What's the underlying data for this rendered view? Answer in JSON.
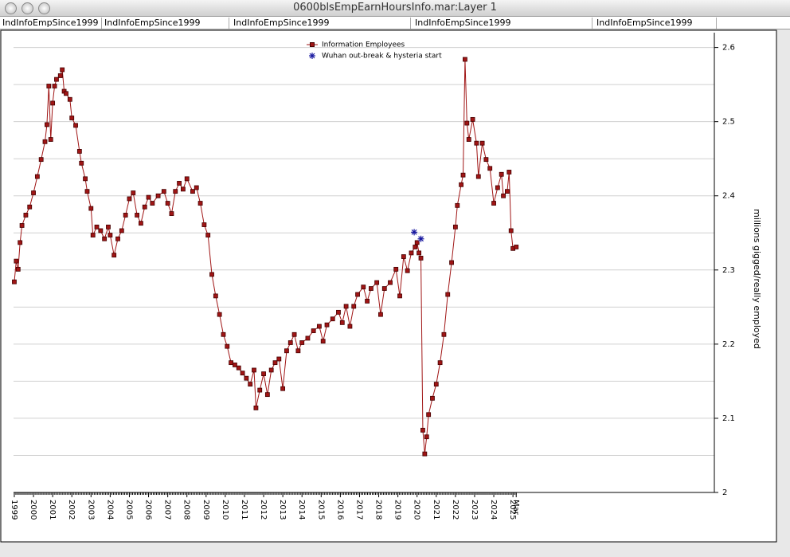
{
  "window_title": "0600blsEmpEarnHoursInfo.mar:Layer 1",
  "tabs": [
    "IndInfoEmpSince1999",
    "IndInfoEmpSince1999",
    "IndInfoEmpSince1999",
    "IndInfoEmpSince1999",
    "IndInfoEmpSince1999"
  ],
  "chart_data": {
    "type": "line",
    "y_label": "millions gigged/really employed",
    "legend": "top-center",
    "xlim": [
      1998.96,
      2035.5
    ],
    "ylim": [
      2,
      2.62
    ],
    "yticks": [
      2,
      2.1,
      2.2,
      2.3,
      2.4,
      2.5,
      2.6
    ],
    "y_gridlines": [
      2.05,
      2.1,
      2.15,
      2.2,
      2.25,
      2.3,
      2.35,
      2.4,
      2.45,
      2.5,
      2.55,
      2.6
    ],
    "xticks": [
      1999,
      2000,
      2001,
      2002,
      2003,
      2004,
      2005,
      2006,
      2007,
      2008,
      2009,
      2010,
      2011,
      2012,
      2013,
      2014,
      2015,
      2016,
      2017,
      2018,
      2019,
      2020,
      2021,
      2022,
      2023,
      2024,
      2025,
      {
        "value": 2025.17,
        "label": "Mar"
      }
    ],
    "series": [
      {
        "name": "Information Employees",
        "color": "#a01515",
        "marker": "square",
        "x": [
          1999.0,
          1999.1,
          1999.2,
          1999.3,
          1999.4,
          1999.6,
          1999.8,
          2000.0,
          2000.2,
          2000.4,
          2000.6,
          2000.7,
          2000.8,
          2000.9,
          2001.0,
          2001.1,
          2001.2,
          2001.4,
          2001.5,
          2001.6,
          2001.7,
          2001.9,
          2002.0,
          2002.2,
          2002.4,
          2002.5,
          2002.7,
          2002.8,
          2003.0,
          2003.1,
          2003.3,
          2003.5,
          2003.7,
          2003.9,
          2004.0,
          2004.2,
          2004.4,
          2004.6,
          2004.8,
          2005.0,
          2005.2,
          2005.4,
          2005.6,
          2005.8,
          2006.0,
          2006.2,
          2006.5,
          2006.8,
          2007.0,
          2007.2,
          2007.4,
          2007.6,
          2007.8,
          2008.0,
          2008.3,
          2008.5,
          2008.7,
          2008.9,
          2009.1,
          2009.3,
          2009.5,
          2009.7,
          2009.9,
          2010.1,
          2010.3,
          2010.5,
          2010.7,
          2010.9,
          2011.1,
          2011.3,
          2011.5,
          2011.6,
          2011.8,
          2012.0,
          2012.2,
          2012.4,
          2012.6,
          2012.8,
          2013.0,
          2013.2,
          2013.4,
          2013.6,
          2013.8,
          2014.0,
          2014.3,
          2014.6,
          2014.9,
          2015.1,
          2015.3,
          2015.6,
          2015.9,
          2016.1,
          2016.3,
          2016.5,
          2016.7,
          2016.9,
          2017.2,
          2017.4,
          2017.6,
          2017.9,
          2018.1,
          2018.3,
          2018.6,
          2018.9,
          2019.1,
          2019.3,
          2019.5,
          2019.7,
          2019.9,
          2020.0,
          2020.1,
          2020.2,
          2020.3,
          2020.4,
          2020.5,
          2020.6,
          2020.8,
          2021.0,
          2021.2,
          2021.4,
          2021.6,
          2021.8,
          2022.0,
          2022.1,
          2022.3,
          2022.4,
          2022.5,
          2022.6,
          2022.7,
          2022.9,
          2023.1,
          2023.2,
          2023.4,
          2023.6,
          2023.8,
          2024.0,
          2024.2,
          2024.4,
          2024.5,
          2024.7,
          2024.8,
          2024.9,
          2025.0,
          2025.17
        ],
        "values": [
          2.284,
          2.312,
          2.301,
          2.337,
          2.36,
          2.374,
          2.385,
          2.404,
          2.426,
          2.449,
          2.473,
          2.496,
          2.548,
          2.476,
          2.525,
          2.548,
          2.557,
          2.562,
          2.57,
          2.541,
          2.538,
          2.53,
          2.505,
          2.495,
          2.46,
          2.444,
          2.423,
          2.406,
          2.383,
          2.347,
          2.358,
          2.353,
          2.342,
          2.358,
          2.347,
          2.32,
          2.342,
          2.353,
          2.374,
          2.396,
          2.404,
          2.374,
          2.363,
          2.385,
          2.398,
          2.39,
          2.4,
          2.406,
          2.39,
          2.376,
          2.406,
          2.417,
          2.409,
          2.423,
          2.406,
          2.411,
          2.39,
          2.361,
          2.347,
          2.294,
          2.265,
          2.24,
          2.213,
          2.197,
          2.175,
          2.172,
          2.168,
          2.161,
          2.154,
          2.146,
          2.165,
          2.114,
          2.138,
          2.16,
          2.132,
          2.165,
          2.175,
          2.18,
          2.14,
          2.191,
          2.202,
          2.213,
          2.191,
          2.202,
          2.208,
          2.218,
          2.224,
          2.204,
          2.226,
          2.234,
          2.243,
          2.229,
          2.251,
          2.224,
          2.251,
          2.267,
          2.277,
          2.258,
          2.275,
          2.283,
          2.24,
          2.275,
          2.283,
          2.301,
          2.265,
          2.318,
          2.299,
          2.323,
          2.331,
          2.337,
          2.323,
          2.316,
          2.084,
          2.052,
          2.075,
          2.105,
          2.127,
          2.146,
          2.175,
          2.213,
          2.267,
          2.31,
          2.358,
          2.387,
          2.415,
          2.428,
          2.584,
          2.498,
          2.476,
          2.503,
          2.471,
          2.426,
          2.471,
          2.449,
          2.437,
          2.39,
          2.411,
          2.429,
          2.4,
          2.406,
          2.432,
          2.353,
          2.329,
          2.331
        ]
      },
      {
        "name": "Wuhan out-break & hysteria start",
        "color": "#1a1aa0",
        "marker": "asterisk",
        "x": [
          2019.85,
          2020.2
        ],
        "values": [
          2.351,
          2.342
        ]
      }
    ]
  }
}
